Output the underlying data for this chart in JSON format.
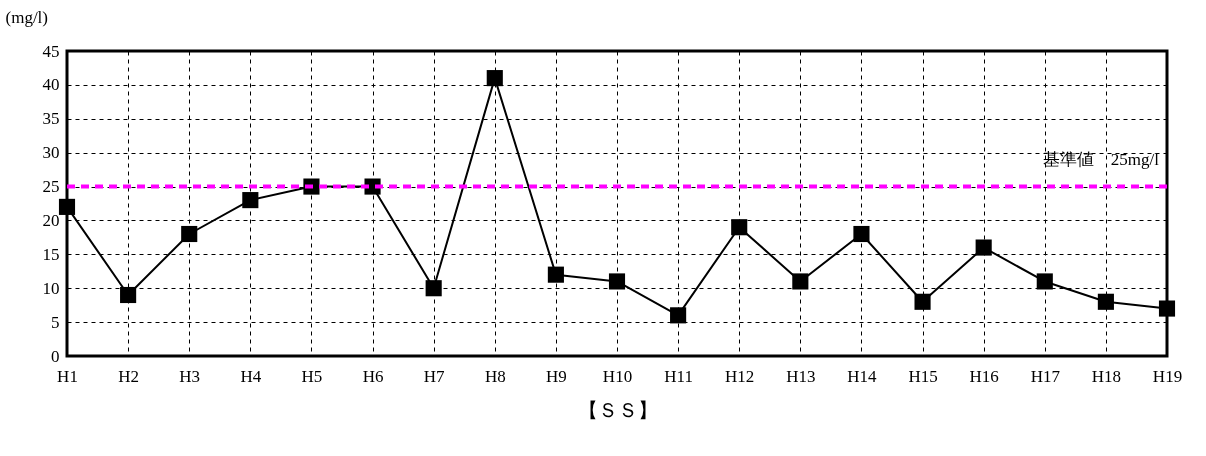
{
  "chart_data": {
    "type": "line",
    "ylabel": "(mg/l)",
    "xlabel": "【ＳＳ】",
    "categories": [
      "H1",
      "H2",
      "H3",
      "H4",
      "H5",
      "H6",
      "H7",
      "H8",
      "H9",
      "H10",
      "H11",
      "H12",
      "H13",
      "H14",
      "H15",
      "H16",
      "H17",
      "H18",
      "H19"
    ],
    "series": [
      {
        "color": "#000000",
        "values": [
          22,
          9,
          18,
          23,
          25,
          25,
          10,
          41,
          12,
          11,
          6,
          19,
          11,
          18,
          8,
          16,
          11,
          8,
          7
        ]
      }
    ],
    "ylim": [
      0,
      45
    ],
    "yticks": [
      0,
      5,
      10,
      15,
      20,
      25,
      30,
      35,
      40,
      45
    ],
    "grid": true,
    "marker": "square",
    "line_style": "solid",
    "ref_lines": [
      {
        "axis": "y",
        "value": 25,
        "label": "基準値　25mg/l",
        "color": "#ff00ff",
        "line_style": "dashed"
      }
    ]
  }
}
